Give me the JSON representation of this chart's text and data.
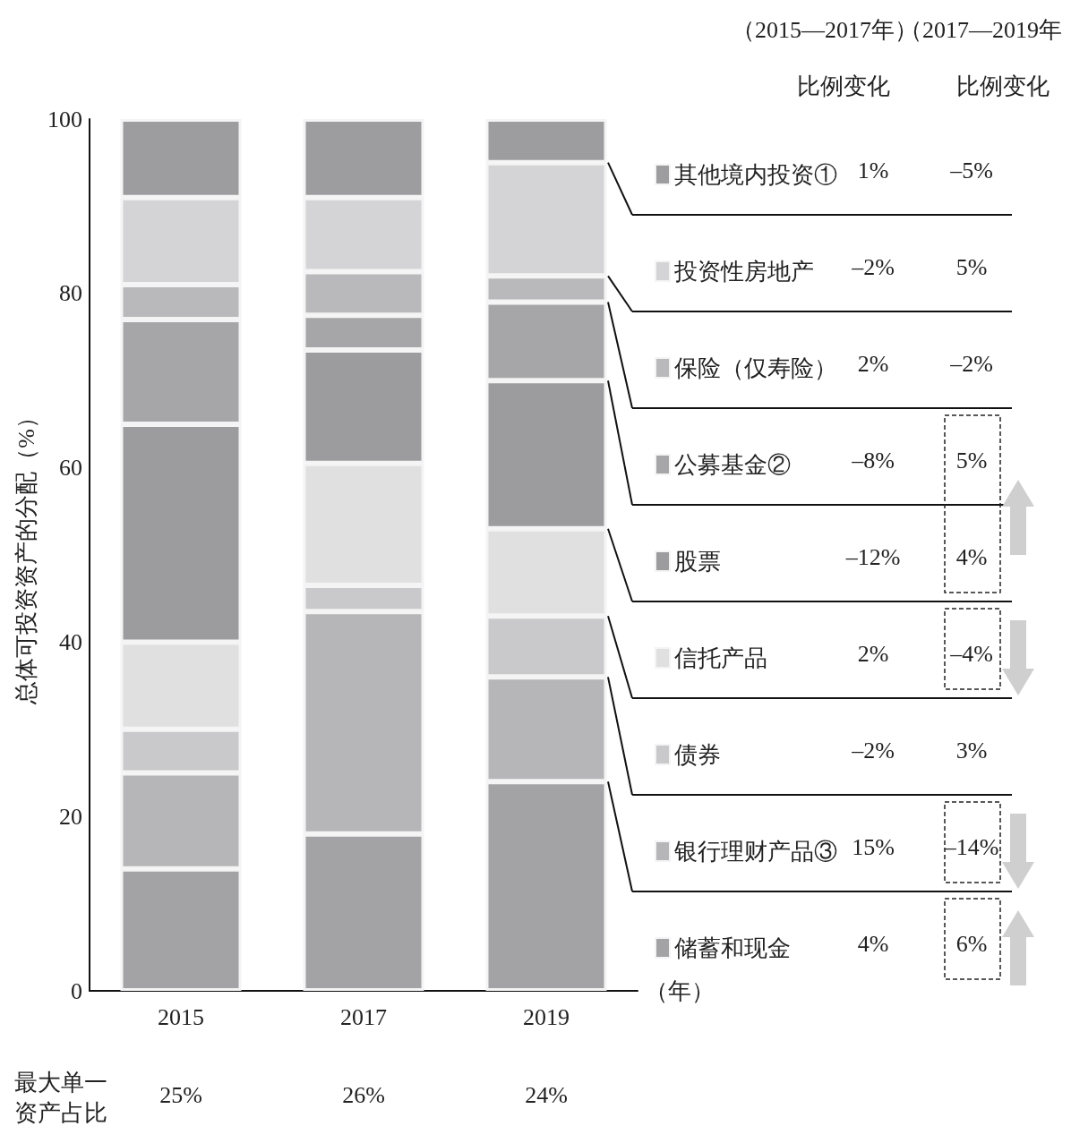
{
  "chart_data": {
    "type": "bar",
    "stacked": true,
    "ylabel": "总体可投资资产的分配（%）",
    "xlabel": "（年）",
    "categories": [
      "2015",
      "2017",
      "2019"
    ],
    "ylim": [
      0,
      100
    ],
    "yticks": [
      0,
      20,
      40,
      60,
      80,
      100
    ],
    "grid": false,
    "legend": "right",
    "series": [
      {
        "name": "储蓄和现金",
        "color": "#a3a3a5",
        "values": [
          14,
          18,
          24
        ]
      },
      {
        "name": "银行理财产品③",
        "color": "#b6b6b8",
        "values": [
          11,
          25.5,
          12
        ]
      },
      {
        "name": "债券",
        "color": "#c9c9cb",
        "values": [
          5,
          3,
          7
        ]
      },
      {
        "name": "信托产品",
        "color": "#e0e0e0",
        "values": [
          10,
          14,
          10
        ]
      },
      {
        "name": "股票",
        "color": "#9c9c9e",
        "values": [
          25,
          13,
          17
        ]
      },
      {
        "name": "公募基金②",
        "color": "#a6a6a8",
        "values": [
          12,
          4,
          9
        ]
      },
      {
        "name": "保险（仅寿险）",
        "color": "#b9b9bb",
        "values": [
          4,
          5,
          3
        ]
      },
      {
        "name": "投资性房地产",
        "color": "#d4d4d6",
        "values": [
          10,
          8.5,
          13
        ]
      },
      {
        "name": "其他境内投资①",
        "color": "#9d9d9f",
        "values": [
          9,
          9,
          5
        ]
      }
    ],
    "annotations": [
      "（2015—2017年）",
      "（2017—2019年",
      "比例变化",
      "比例变化",
      "1%",
      "–5%",
      "–2%",
      "5%",
      "2%",
      "–2%",
      "–8%",
      "5%",
      "–12%",
      "4%",
      "2%",
      "–4%",
      "–2%",
      "3%",
      "15%",
      "–14%",
      "4%",
      "6%",
      "最大单一资产占比",
      "25%",
      "26%",
      "24%"
    ]
  }
}
